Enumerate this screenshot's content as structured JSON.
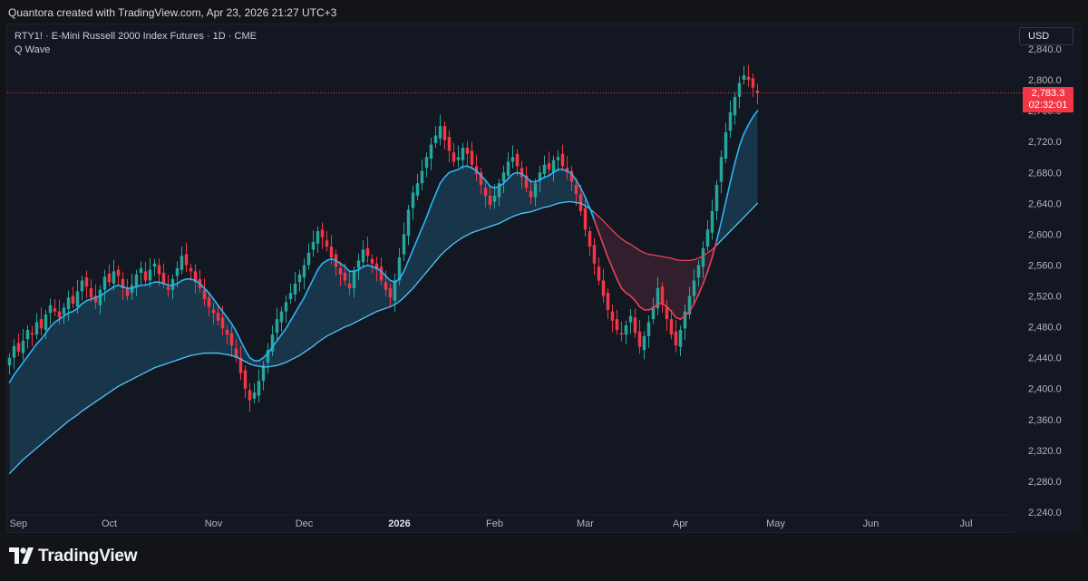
{
  "caption": "Quantora created with TradingView.com, Apr 23, 2026 21:27 UTC+3",
  "legend": {
    "symbol_line": "RTY1! · E-Mini Russell 2000 Index Futures · 1D · CME",
    "indicator": "Q Wave"
  },
  "currency_button": "USD",
  "last_price": {
    "value": "2,783.3",
    "countdown": "02:32:01"
  },
  "brand": "TradingView",
  "colors": {
    "background": "#131722",
    "bull": "#26a69a",
    "bear": "#f23645",
    "fast_wave": "#29b6f6",
    "slow_wave": "#4fc3f7",
    "slow_wave_bear": "#e8435a",
    "last_price_line": "#f23645"
  },
  "chart_data": {
    "type": "candlestick",
    "symbol": "RTY1!",
    "timeframe": "1D",
    "ylim": [
      2240,
      2860
    ],
    "y_ticks": [
      "2,840.0",
      "2,800.0",
      "2,760.0",
      "2,720.0",
      "2,680.0",
      "2,640.0",
      "2,600.0",
      "2,560.0",
      "2,520.0",
      "2,480.0",
      "2,440.0",
      "2,400.0",
      "2,360.0",
      "2,320.0",
      "2,280.0",
      "2,240.0"
    ],
    "x_ticks": [
      {
        "label": "Sep",
        "bar": 0
      },
      {
        "label": "Oct",
        "bar": 22
      },
      {
        "label": "Nov",
        "bar": 45
      },
      {
        "label": "Dec",
        "bar": 65
      },
      {
        "label": "2026",
        "bar": 86
      },
      {
        "label": "Feb",
        "bar": 107
      },
      {
        "label": "Mar",
        "bar": 127
      },
      {
        "label": "Apr",
        "bar": 148
      },
      {
        "label": "May",
        "bar": 169
      },
      {
        "label": "Jun",
        "bar": 190
      },
      {
        "label": "Jul",
        "bar": 211
      }
    ],
    "total_slots": 222,
    "last_price": 2783.3,
    "closes": [
      2440,
      2455,
      2448,
      2462,
      2476,
      2470,
      2486,
      2478,
      2496,
      2508,
      2500,
      2492,
      2505,
      2518,
      2510,
      2526,
      2540,
      2532,
      2518,
      2512,
      2528,
      2545,
      2538,
      2552,
      2546,
      2530,
      2520,
      2534,
      2548,
      2556,
      2540,
      2554,
      2562,
      2548,
      2536,
      2528,
      2542,
      2556,
      2572,
      2560,
      2552,
      2538,
      2530,
      2516,
      2506,
      2498,
      2488,
      2478,
      2470,
      2456,
      2440,
      2420,
      2400,
      2385,
      2395,
      2410,
      2430,
      2450,
      2470,
      2490,
      2500,
      2512,
      2524,
      2536,
      2548,
      2560,
      2576,
      2590,
      2604,
      2596,
      2584,
      2570,
      2558,
      2548,
      2540,
      2530,
      2552,
      2566,
      2580,
      2572,
      2562,
      2554,
      2540,
      2528,
      2518,
      2540,
      2570,
      2600,
      2632,
      2654,
      2666,
      2682,
      2700,
      2716,
      2728,
      2740,
      2722,
      2708,
      2694,
      2700,
      2712,
      2704,
      2690,
      2678,
      2664,
      2650,
      2638,
      2650,
      2666,
      2680,
      2694,
      2700,
      2688,
      2674,
      2660,
      2648,
      2666,
      2680,
      2690,
      2684,
      2696,
      2700,
      2688,
      2680,
      2668,
      2652,
      2630,
      2606,
      2584,
      2562,
      2540,
      2520,
      2502,
      2488,
      2476,
      2470,
      2482,
      2494,
      2472,
      2454,
      2468,
      2486,
      2506,
      2530,
      2510,
      2490,
      2470,
      2456,
      2476,
      2500,
      2520,
      2540,
      2560,
      2582,
      2606,
      2630,
      2664,
      2700,
      2732,
      2758,
      2778,
      2796,
      2806,
      2800,
      2790,
      2783.3
    ],
    "fast_wave": [
      2408,
      2418,
      2426,
      2434,
      2442,
      2450,
      2458,
      2464,
      2472,
      2480,
      2486,
      2490,
      2494,
      2498,
      2500,
      2504,
      2510,
      2514,
      2516,
      2518,
      2520,
      2524,
      2528,
      2532,
      2534,
      2532,
      2530,
      2530,
      2532,
      2534,
      2534,
      2536,
      2538,
      2538,
      2536,
      2534,
      2534,
      2536,
      2540,
      2542,
      2542,
      2540,
      2536,
      2530,
      2524,
      2516,
      2508,
      2500,
      2492,
      2484,
      2474,
      2462,
      2450,
      2440,
      2436,
      2436,
      2440,
      2446,
      2454,
      2462,
      2470,
      2478,
      2488,
      2498,
      2508,
      2518,
      2530,
      2542,
      2554,
      2562,
      2566,
      2568,
      2566,
      2562,
      2558,
      2552,
      2552,
      2554,
      2558,
      2560,
      2558,
      2556,
      2552,
      2546,
      2540,
      2538,
      2542,
      2552,
      2566,
      2580,
      2594,
      2608,
      2622,
      2638,
      2652,
      2666,
      2674,
      2680,
      2682,
      2684,
      2688,
      2688,
      2686,
      2682,
      2676,
      2670,
      2662,
      2660,
      2662,
      2666,
      2672,
      2678,
      2680,
      2678,
      2674,
      2668,
      2668,
      2670,
      2674,
      2676,
      2680,
      2684,
      2684,
      2682,
      2678,
      2670,
      2660,
      2648,
      2634,
      2618,
      2602,
      2586,
      2570,
      2556,
      2542,
      2530,
      2524,
      2520,
      2514,
      2506,
      2502,
      2502,
      2504,
      2510,
      2510,
      2506,
      2500,
      2492,
      2490,
      2494,
      2500,
      2510,
      2522,
      2536,
      2552,
      2570,
      2592,
      2616,
      2642,
      2668,
      2692,
      2714,
      2730,
      2742,
      2752,
      2760
    ],
    "slow_wave": [
      2290,
      2296,
      2302,
      2308,
      2313,
      2318,
      2323,
      2328,
      2333,
      2338,
      2343,
      2348,
      2353,
      2358,
      2362,
      2366,
      2371,
      2375,
      2379,
      2383,
      2387,
      2391,
      2395,
      2399,
      2403,
      2406,
      2409,
      2412,
      2415,
      2418,
      2421,
      2424,
      2427,
      2429,
      2431,
      2433,
      2435,
      2437,
      2439,
      2441,
      2443,
      2444,
      2445,
      2446,
      2446,
      2446,
      2446,
      2445,
      2444,
      2443,
      2441,
      2438,
      2435,
      2432,
      2430,
      2429,
      2428,
      2428,
      2429,
      2430,
      2432,
      2434,
      2437,
      2440,
      2443,
      2447,
      2451,
      2455,
      2460,
      2464,
      2468,
      2471,
      2474,
      2477,
      2480,
      2482,
      2485,
      2488,
      2491,
      2494,
      2497,
      2500,
      2502,
      2504,
      2506,
      2509,
      2513,
      2518,
      2524,
      2530,
      2537,
      2544,
      2551,
      2558,
      2565,
      2572,
      2578,
      2583,
      2588,
      2592,
      2596,
      2599,
      2602,
      2604,
      2606,
      2608,
      2610,
      2612,
      2614,
      2617,
      2620,
      2623,
      2625,
      2627,
      2628,
      2629,
      2631,
      2633,
      2635,
      2636,
      2638,
      2640,
      2641,
      2642,
      2642,
      2641,
      2640,
      2637,
      2633,
      2628,
      2623,
      2617,
      2611,
      2605,
      2599,
      2594,
      2590,
      2587,
      2583,
      2579,
      2576,
      2574,
      2573,
      2572,
      2571,
      2570,
      2569,
      2567,
      2566,
      2566,
      2566,
      2567,
      2569,
      2572,
      2576,
      2580,
      2586,
      2592,
      2598,
      2604,
      2610,
      2616,
      2622,
      2628,
      2634,
      2640
    ]
  }
}
